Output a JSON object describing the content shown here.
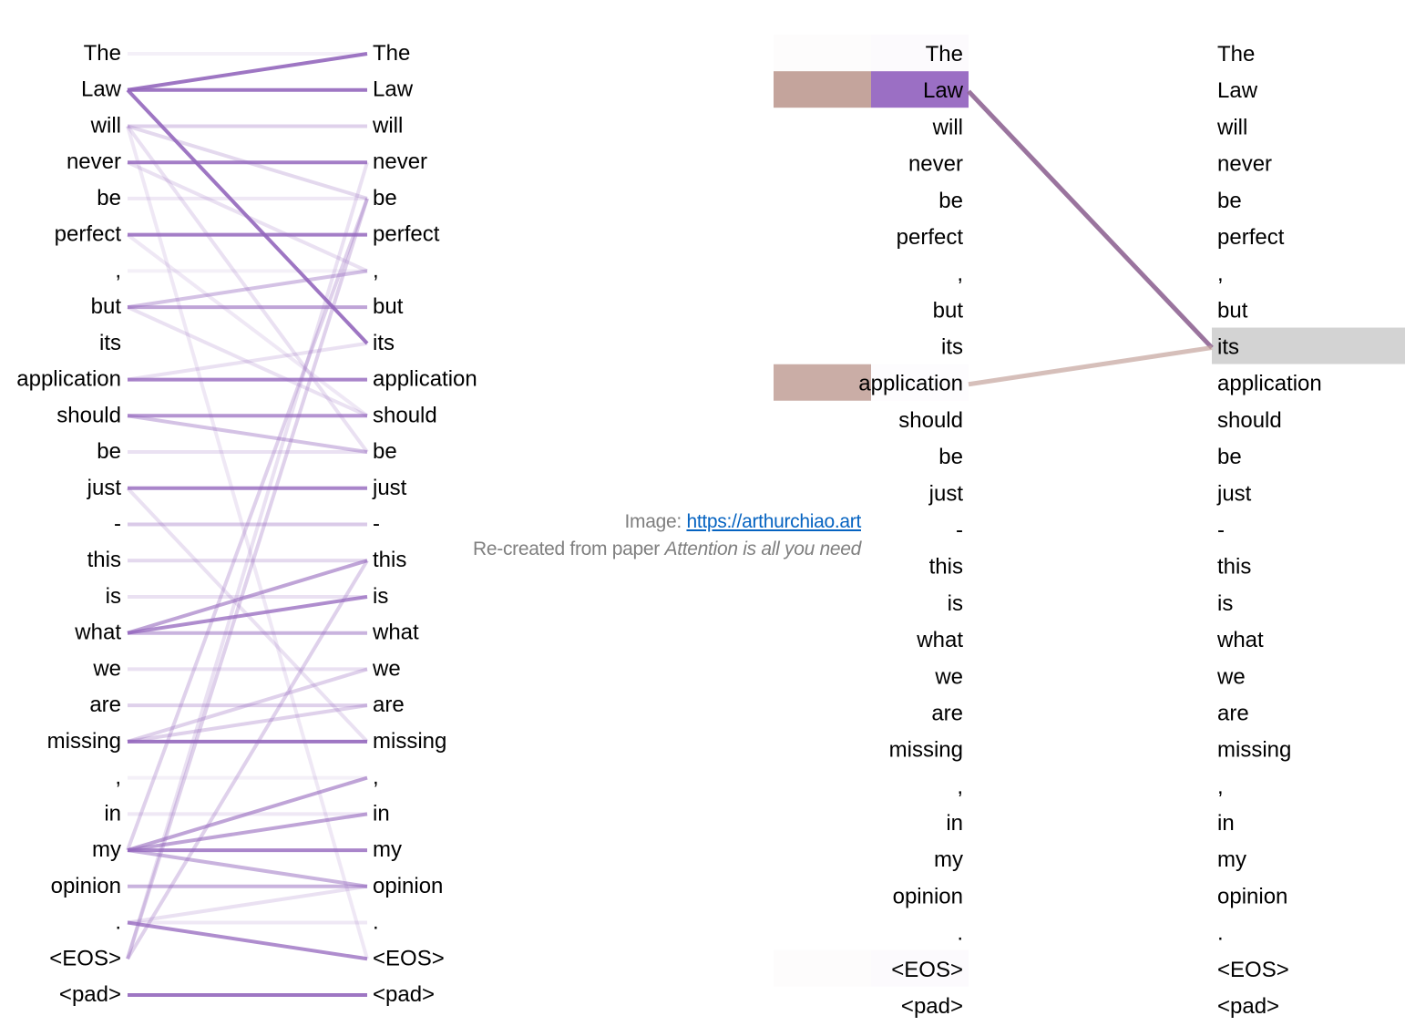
{
  "tokens": [
    "The",
    "Law",
    "will",
    "never",
    "be",
    "perfect",
    ",",
    "but",
    "its",
    "application",
    "should",
    "be",
    "just",
    "-",
    "this",
    "is",
    "what",
    "we",
    "are",
    "missing",
    ",",
    "in",
    "my",
    "opinion",
    ".",
    "<EOS>",
    "<pad>"
  ],
  "colors": {
    "attention": "#9467bd",
    "head_a": "#8f6593",
    "head_b": "#c4a49c",
    "selected": "#d3d3d3"
  },
  "left_panel": {
    "edges": [
      [
        1,
        0,
        0.9
      ],
      [
        1,
        1,
        0.9
      ],
      [
        1,
        8,
        0.9
      ],
      [
        3,
        3,
        0.85
      ],
      [
        5,
        5,
        0.85
      ],
      [
        7,
        7,
        0.6
      ],
      [
        9,
        9,
        0.8
      ],
      [
        10,
        10,
        0.7
      ],
      [
        12,
        12,
        0.8
      ],
      [
        16,
        16,
        0.5
      ],
      [
        16,
        15,
        0.75
      ],
      [
        16,
        14,
        0.6
      ],
      [
        19,
        19,
        0.9
      ],
      [
        22,
        22,
        0.8
      ],
      [
        22,
        20,
        0.6
      ],
      [
        22,
        21,
        0.6
      ],
      [
        22,
        23,
        0.5
      ],
      [
        23,
        23,
        0.5
      ],
      [
        24,
        25,
        0.75
      ],
      [
        26,
        26,
        0.9
      ],
      [
        2,
        2,
        0.3
      ],
      [
        7,
        6,
        0.4
      ],
      [
        10,
        11,
        0.4
      ],
      [
        13,
        13,
        0.35
      ],
      [
        17,
        17,
        0.2
      ],
      [
        18,
        18,
        0.3
      ],
      [
        19,
        17,
        0.3
      ],
      [
        19,
        18,
        0.3
      ],
      [
        25,
        4,
        0.3
      ],
      [
        25,
        3,
        0.2
      ],
      [
        22,
        4,
        0.3
      ],
      [
        2,
        4,
        0.25
      ],
      [
        2,
        11,
        0.2
      ],
      [
        4,
        4,
        0.15
      ],
      [
        11,
        11,
        0.2
      ],
      [
        14,
        14,
        0.25
      ],
      [
        15,
        15,
        0.2
      ],
      [
        24,
        24,
        0.15
      ],
      [
        25,
        14,
        0.3
      ],
      [
        0,
        0,
        0.1
      ],
      [
        6,
        6,
        0.1
      ],
      [
        20,
        20,
        0.1
      ],
      [
        21,
        21,
        0.15
      ],
      [
        3,
        6,
        0.2
      ],
      [
        5,
        10,
        0.15
      ],
      [
        12,
        19,
        0.2
      ],
      [
        24,
        23,
        0.2
      ],
      [
        2,
        25,
        0.15
      ],
      [
        7,
        10,
        0.2
      ],
      [
        9,
        8,
        0.2
      ]
    ]
  },
  "right_panel": {
    "selected_token": 8,
    "links": [
      {
        "to": 1,
        "head": "head_a",
        "weight": 0.9
      },
      {
        "to": 9,
        "head": "head_b",
        "weight": 0.7
      }
    ],
    "bars": [
      {
        "token": 1,
        "head_a": 1.0,
        "head_b": 1.0
      },
      {
        "token": 9,
        "head_a": 0.02,
        "head_b": 0.9
      },
      {
        "token": 0,
        "head_a": 0.03,
        "head_b": 0.03
      },
      {
        "token": 25,
        "head_a": 0.03,
        "head_b": 0.03
      }
    ]
  },
  "caption": {
    "prefix": "Image: ",
    "link": "https://arthurchiao.art",
    "line2_prefix": "Re-created from paper ",
    "line2_title": "Attention is all you need"
  }
}
